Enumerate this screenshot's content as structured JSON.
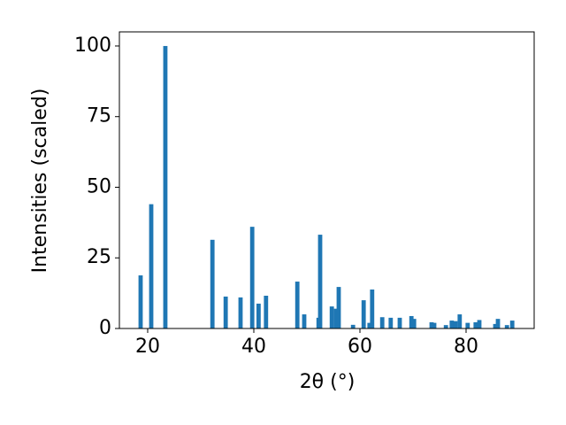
{
  "chart_data": {
    "type": "bar",
    "xlabel": "2θ (°)",
    "ylabel": "Intensities (scaled)",
    "x": [
      18.67,
      20.67,
      23.33,
      32.2,
      34.7,
      37.5,
      39.7,
      40.9,
      42.3,
      48.2,
      49.5,
      52.2,
      52.5,
      54.7,
      55.5,
      56,
      58.7,
      60.7,
      61.8,
      62.3,
      64.2,
      65.8,
      67.5,
      69.7,
      70.2,
      73.5,
      74,
      76.2,
      77.3,
      78,
      78.8,
      80.3,
      81.8,
      82.5,
      85.5,
      86,
      87.7,
      88.7
    ],
    "values": [
      18.8,
      44,
      100,
      31.4,
      11.3,
      11,
      36,
      8.8,
      11.6,
      16.6,
      5,
      3.8,
      33.2,
      7.8,
      7,
      14.7,
      1.3,
      10,
      2,
      13.8,
      4,
      3.8,
      3.8,
      4.4,
      3.4,
      2.2,
      2,
      1.2,
      2.8,
      2.6,
      5,
      2,
      2.2,
      3,
      1.6,
      3.4,
      1.2,
      2.8
    ],
    "color": "#1f77b4",
    "xlim": [
      14.67,
      92.83
    ],
    "xticks": [
      20,
      40,
      60,
      80
    ],
    "ylim": [
      0,
      105
    ],
    "yticks": [
      0,
      25,
      50,
      75,
      100
    ]
  }
}
